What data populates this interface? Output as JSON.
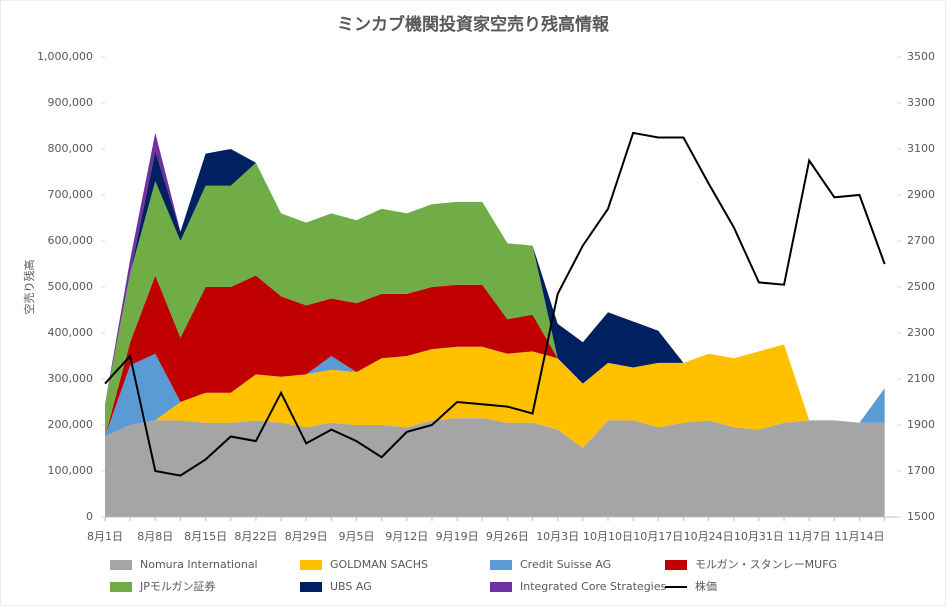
{
  "chart_data": {
    "type": "area",
    "title": "ミンカブ機関投資家空売り残高情報",
    "y_label": "空売り残高",
    "categories": [
      "8月1日",
      null,
      "8月8日",
      null,
      "8月15日",
      null,
      "8月22日",
      null,
      "8月29日",
      null,
      "9月5日",
      null,
      "9月12日",
      null,
      "9月19日",
      null,
      "9月26日",
      null,
      "10月3日",
      null,
      "10月10日",
      null,
      "10月17日",
      null,
      "10月24日",
      null,
      "10月31日",
      null,
      "11月7日",
      null,
      "11月14日",
      null
    ],
    "ylim": [
      0,
      1000000
    ],
    "yticks": [
      0,
      {
        "value": 100000,
        "label": "100,000"
      },
      {
        "value": 200000,
        "label": "200,000"
      },
      {
        "value": 300000,
        "label": "300,000"
      },
      {
        "value": 400000,
        "label": "400,000"
      },
      {
        "value": 500000,
        "label": "500,000"
      },
      {
        "value": 600000,
        "label": "600,000"
      },
      {
        "value": 700000,
        "label": "700,000"
      },
      {
        "value": 800000,
        "label": "800,000"
      },
      {
        "value": 900000,
        "label": "900,000"
      },
      {
        "value": 1000000,
        "label": "1,000,000"
      }
    ],
    "y2lim": [
      1500,
      3500
    ],
    "y2ticks": [
      1500,
      1700,
      1900,
      2100,
      2300,
      2500,
      2700,
      2900,
      3100,
      3300,
      3500
    ],
    "stacked": true,
    "series": [
      {
        "name": "Nomura International",
        "color": "#a5a5a5",
        "values": [
          175000,
          200000,
          210000,
          210000,
          205000,
          205000,
          210000,
          205000,
          195000,
          205000,
          200000,
          200000,
          195000,
          210000,
          215000,
          215000,
          205000,
          205000,
          190000,
          150000,
          210000,
          210000,
          195000,
          205000,
          210000,
          195000,
          190000,
          205000,
          210000,
          210000,
          205000,
          205000
        ]
      },
      {
        "name": "GOLDMAN SACHS",
        "color": "#ffc000",
        "values": [
          0,
          0,
          0,
          40000,
          65000,
          65000,
          100000,
          100000,
          115000,
          115000,
          115000,
          145000,
          155000,
          155000,
          155000,
          155000,
          150000,
          155000,
          155000,
          140000,
          125000,
          115000,
          140000,
          130000,
          145000,
          150000,
          170000,
          170000,
          0,
          0,
          0,
          0
        ]
      },
      {
        "name": "Credit Suisse AG",
        "color": "#5b9bd5",
        "values": [
          0,
          130000,
          145000,
          0,
          0,
          0,
          0,
          0,
          0,
          30000,
          0,
          0,
          0,
          0,
          0,
          0,
          0,
          0,
          0,
          0,
          0,
          0,
          0,
          0,
          0,
          0,
          0,
          0,
          0,
          0,
          0,
          75000
        ]
      },
      {
        "name": "モルガン・スタンレーMUFG",
        "color": "#c00000",
        "values": [
          0,
          50000,
          170000,
          140000,
          230000,
          230000,
          215000,
          175000,
          150000,
          125000,
          150000,
          140000,
          135000,
          135000,
          135000,
          135000,
          75000,
          80000,
          0,
          0,
          0,
          0,
          0,
          0,
          0,
          0,
          0,
          0,
          0,
          0,
          0,
          0
        ]
      },
      {
        "name": "JPモルガン証券",
        "color": "#70ad47",
        "values": [
          70000,
          150000,
          205000,
          210000,
          220000,
          220000,
          245000,
          180000,
          180000,
          185000,
          180000,
          185000,
          175000,
          180000,
          180000,
          180000,
          165000,
          150000,
          0,
          0,
          0,
          0,
          0,
          0,
          0,
          0,
          0,
          0,
          0,
          0,
          0,
          0
        ]
      },
      {
        "name": "UBS AG",
        "color": "#002060",
        "values": [
          0,
          0,
          65000,
          20000,
          70000,
          80000,
          0,
          0,
          0,
          0,
          0,
          0,
          0,
          0,
          0,
          0,
          0,
          0,
          75000,
          90000,
          110000,
          100000,
          70000,
          0,
          0,
          0,
          0,
          0,
          0,
          0,
          0,
          0
        ]
      },
      {
        "name": "Integrated Core Strategies",
        "color": "#7030a0",
        "values": [
          0,
          30000,
          40000,
          0,
          0,
          0,
          0,
          0,
          0,
          0,
          0,
          0,
          0,
          0,
          0,
          0,
          0,
          0,
          0,
          0,
          0,
          0,
          0,
          0,
          0,
          0,
          0,
          0,
          0,
          0,
          0,
          0
        ]
      },
      {
        "name": "株価",
        "color": "#000000",
        "type": "line",
        "axis": "y2",
        "values": [
          2080,
          2200,
          1700,
          1680,
          1750,
          1850,
          1830,
          2040,
          1820,
          1880,
          1830,
          1760,
          1870,
          1900,
          2000,
          1990,
          1980,
          1950,
          2470,
          2680,
          2840,
          3170,
          3150,
          3150,
          2950,
          2760,
          2520,
          2510,
          3050,
          2890,
          2900,
          2600
        ]
      }
    ]
  }
}
